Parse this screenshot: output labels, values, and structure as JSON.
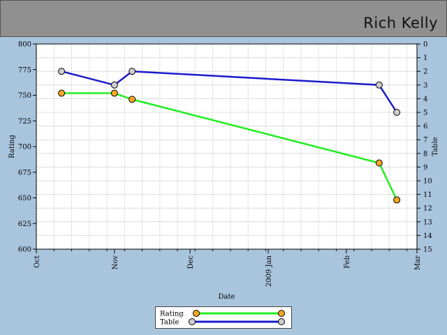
{
  "header": {
    "name": "Rich Kelly"
  },
  "colors": {
    "background": "#a9c4dd",
    "header": "#909090",
    "rating_line": "#22ee22",
    "rating_marker": "#f5a623",
    "table_line": "#1a1acc",
    "table_marker": "#cccccc"
  },
  "chart_data": {
    "type": "line",
    "xlabel": "Date",
    "ylabel": "Rating",
    "y2label": "Table",
    "x_ticks": [
      {
        "date": "2008-10-01",
        "label": "Oct"
      },
      {
        "date": "2008-11-01",
        "label": "Nov"
      },
      {
        "date": "2008-12-01",
        "label": "Dec"
      },
      {
        "date": "2009-01-01",
        "label": "2009 Jan"
      },
      {
        "date": "2009-02-01",
        "label": "Feb"
      },
      {
        "date": "2009-03-01",
        "label": "Mar"
      }
    ],
    "xlim": [
      "2008-10-01",
      "2009-03-01"
    ],
    "ylim": [
      600,
      800
    ],
    "y_ticks": [
      600,
      625,
      650,
      675,
      700,
      725,
      750,
      775,
      800
    ],
    "y2lim": [
      0,
      15
    ],
    "y2_inverted": true,
    "y2_ticks": [
      0,
      1,
      2,
      3,
      4,
      5,
      6,
      7,
      8,
      9,
      10,
      11,
      12,
      13,
      14,
      15
    ],
    "grid": true,
    "legend_position": "bottom",
    "series": [
      {
        "name": "Rating",
        "axis": "left",
        "points": [
          {
            "x": "2008-10-11",
            "y": 752
          },
          {
            "x": "2008-11-01",
            "y": 752
          },
          {
            "x": "2008-11-08",
            "y": 746
          },
          {
            "x": "2009-02-14",
            "y": 684
          },
          {
            "x": "2009-02-21",
            "y": 648
          }
        ]
      },
      {
        "name": "Table",
        "axis": "right",
        "points": [
          {
            "x": "2008-10-11",
            "y": 2
          },
          {
            "x": "2008-11-01",
            "y": 3
          },
          {
            "x": "2008-11-08",
            "y": 2
          },
          {
            "x": "2009-02-14",
            "y": 3
          },
          {
            "x": "2009-02-21",
            "y": 5
          }
        ]
      }
    ]
  }
}
